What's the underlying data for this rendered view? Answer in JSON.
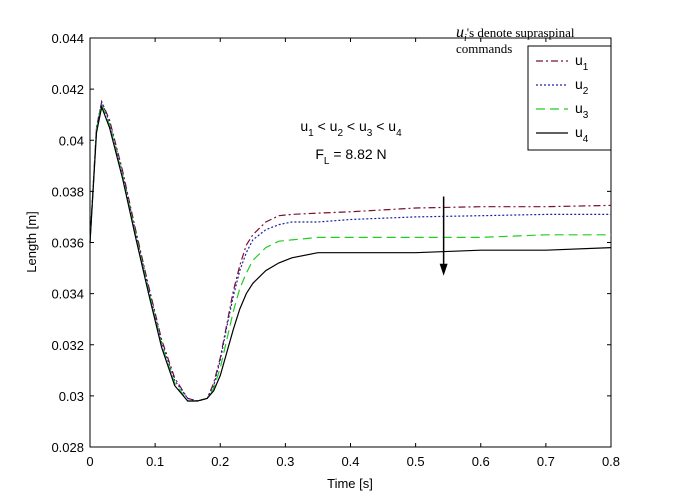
{
  "chart_data": {
    "type": "line",
    "xlabel": "Time [s]",
    "ylabel": "Length [m]",
    "xlim": [
      0,
      0.8
    ],
    "ylim": [
      0.028,
      0.044
    ],
    "xticks": [
      "0",
      "0.1",
      "0.2",
      "0.3",
      "0.4",
      "0.5",
      "0.6",
      "0.7",
      "0.8"
    ],
    "yticks": [
      "0.028",
      "0.03",
      "0.032",
      "0.034",
      "0.036",
      "0.038",
      "0.04",
      "0.042",
      "0.044"
    ],
    "grid": false,
    "legend_placement": "top-right",
    "legend_title": {
      "symbol": "u",
      "symbol_sub": "i",
      "line1_rest": "'s denote supraspinal",
      "line2": "commands"
    },
    "annotation": {
      "line1": [
        {
          "t": "u"
        },
        {
          "sub": "1"
        },
        {
          "t": " < u"
        },
        {
          "sub": "2"
        },
        {
          "t": " < u"
        },
        {
          "sub": "3"
        },
        {
          "t": " < u"
        },
        {
          "sub": "4"
        }
      ],
      "line2": [
        {
          "t": "F"
        },
        {
          "sub": "L"
        },
        {
          "t": " = 8.82 N"
        }
      ],
      "arrow": {
        "x": 0.543,
        "y_from": 0.0378,
        "y_to": 0.0347,
        "direction": "down"
      }
    },
    "series": [
      {
        "name": "u",
        "name_sub": "1",
        "color": "#7a1030",
        "dash": "7,3,2,3",
        "x": [
          0,
          0.01,
          0.018,
          0.03,
          0.05,
          0.07,
          0.09,
          0.11,
          0.13,
          0.15,
          0.165,
          0.18,
          0.19,
          0.2,
          0.21,
          0.22,
          0.23,
          0.24,
          0.25,
          0.27,
          0.29,
          0.31,
          0.35,
          0.4,
          0.5,
          0.6,
          0.7,
          0.8
        ],
        "y": [
          0.036,
          0.0405,
          0.0415,
          0.0408,
          0.0388,
          0.0365,
          0.0343,
          0.0322,
          0.0307,
          0.0299,
          0.0298,
          0.0299,
          0.0305,
          0.0315,
          0.0328,
          0.0341,
          0.0351,
          0.0359,
          0.0363,
          0.0368,
          0.03705,
          0.0371,
          0.03715,
          0.0372,
          0.03735,
          0.0374,
          0.0374,
          0.03745
        ]
      },
      {
        "name": "u",
        "name_sub": "2",
        "color": "#2020a0",
        "dash": "2,2",
        "x": [
          0,
          0.01,
          0.018,
          0.03,
          0.05,
          0.07,
          0.09,
          0.11,
          0.13,
          0.15,
          0.165,
          0.18,
          0.19,
          0.2,
          0.21,
          0.22,
          0.23,
          0.24,
          0.25,
          0.27,
          0.29,
          0.31,
          0.35,
          0.4,
          0.5,
          0.6,
          0.7,
          0.8
        ],
        "y": [
          0.036,
          0.0405,
          0.0415,
          0.0407,
          0.0387,
          0.0364,
          0.0342,
          0.0321,
          0.0306,
          0.0299,
          0.0298,
          0.0299,
          0.0304,
          0.0314,
          0.0327,
          0.0339,
          0.0349,
          0.0356,
          0.0361,
          0.0365,
          0.0367,
          0.0368,
          0.0368,
          0.0369,
          0.037,
          0.03705,
          0.0371,
          0.0371
        ]
      },
      {
        "name": "u",
        "name_sub": "3",
        "color": "#22cc22",
        "dash": "9,5",
        "x": [
          0,
          0.01,
          0.018,
          0.03,
          0.05,
          0.07,
          0.09,
          0.11,
          0.13,
          0.15,
          0.165,
          0.18,
          0.19,
          0.2,
          0.21,
          0.22,
          0.23,
          0.24,
          0.25,
          0.27,
          0.29,
          0.31,
          0.35,
          0.4,
          0.5,
          0.6,
          0.7,
          0.8
        ],
        "y": [
          0.036,
          0.0404,
          0.0414,
          0.0406,
          0.0386,
          0.0363,
          0.0341,
          0.032,
          0.0305,
          0.0298,
          0.0298,
          0.0299,
          0.0303,
          0.0311,
          0.0322,
          0.0333,
          0.0342,
          0.0348,
          0.0353,
          0.0358,
          0.03605,
          0.0361,
          0.0362,
          0.0362,
          0.0362,
          0.0362,
          0.0363,
          0.0363
        ]
      },
      {
        "name": "u",
        "name_sub": "4",
        "color": "#000000",
        "dash": "",
        "x": [
          0,
          0.01,
          0.018,
          0.03,
          0.05,
          0.07,
          0.09,
          0.11,
          0.13,
          0.15,
          0.165,
          0.18,
          0.19,
          0.2,
          0.21,
          0.22,
          0.23,
          0.24,
          0.25,
          0.27,
          0.29,
          0.31,
          0.35,
          0.4,
          0.5,
          0.6,
          0.7,
          0.8
        ],
        "y": [
          0.036,
          0.0403,
          0.0413,
          0.0405,
          0.0385,
          0.0362,
          0.034,
          0.0319,
          0.0304,
          0.0298,
          0.0298,
          0.0299,
          0.0302,
          0.0308,
          0.0317,
          0.0326,
          0.0334,
          0.034,
          0.0344,
          0.0349,
          0.0352,
          0.0354,
          0.0356,
          0.0356,
          0.0356,
          0.0357,
          0.0357,
          0.0358
        ]
      }
    ]
  }
}
